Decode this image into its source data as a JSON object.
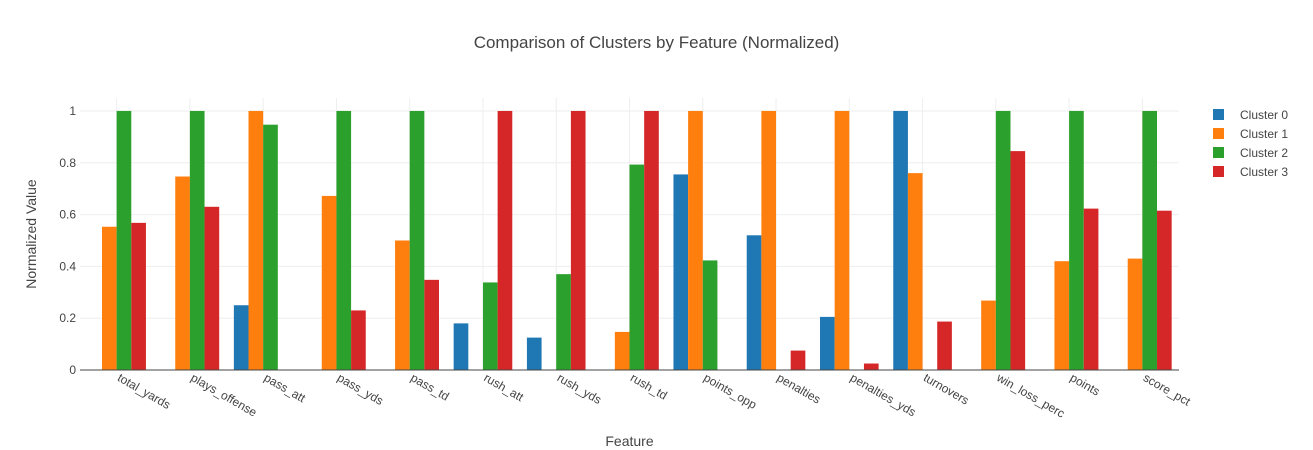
{
  "chart_data": {
    "type": "bar",
    "title": "Comparison of Clusters by Feature (Normalized)",
    "xlabel": "Feature",
    "ylabel": "Normalized Value",
    "ylim": [
      0,
      1.05
    ],
    "yticks": [
      "0",
      "0.2",
      "0.4",
      "0.6",
      "0.8",
      "1"
    ],
    "grid": true,
    "legend_position": "top-right",
    "categories": [
      "total_yards",
      "plays_offense",
      "pass_att",
      "pass_yds",
      "pass_td",
      "rush_att",
      "rush_yds",
      "rush_td",
      "points_opp",
      "penalties",
      "penalties_yds",
      "turnovers",
      "win_loss_perc",
      "points",
      "score_pct"
    ],
    "series": [
      {
        "name": "Cluster 0",
        "color": "#1f77b4",
        "values": [
          0,
          0,
          0.25,
          0,
          0,
          0.18,
          0.125,
          0,
          0.755,
          0.52,
          0.205,
          1.0,
          0,
          0,
          0
        ]
      },
      {
        "name": "Cluster 1",
        "color": "#ff7f0e",
        "values": [
          0.553,
          0.747,
          1.0,
          0.672,
          0.5,
          0,
          0,
          0.147,
          1.0,
          1.0,
          1.0,
          0.76,
          0.268,
          0.42,
          0.43
        ]
      },
      {
        "name": "Cluster 2",
        "color": "#2ca02c",
        "values": [
          1.0,
          1.0,
          0.947,
          1.0,
          1.0,
          0.338,
          0.37,
          0.793,
          0.423,
          0,
          0,
          0,
          1.0,
          1.0,
          1.0
        ]
      },
      {
        "name": "Cluster 3",
        "color": "#d62728",
        "values": [
          0.568,
          0.63,
          0,
          0.23,
          0.348,
          1.0,
          1.0,
          1.0,
          0,
          0.075,
          0.025,
          0.187,
          0.845,
          0.623,
          0.615
        ]
      }
    ]
  }
}
